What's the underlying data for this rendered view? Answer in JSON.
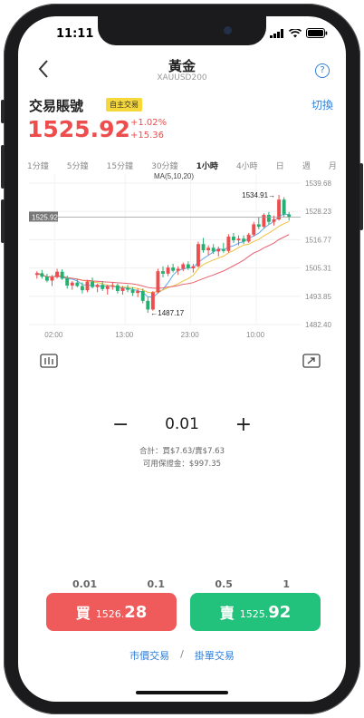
{
  "status": {
    "time": "11:11"
  },
  "nav": {
    "back_icon": "chevron-left-icon",
    "title": "黃金",
    "subtitle": "XAUUSD200",
    "help_label": "?"
  },
  "account": {
    "name": "交易賬號",
    "badge": "自主交易",
    "switch_label": "切換"
  },
  "quote": {
    "price": "1525.92",
    "change_pct": "+1.02%",
    "change_abs": "+15.36"
  },
  "timeframes": [
    "1分鐘",
    "5分鐘",
    "15分鐘",
    "30分鐘",
    "1小時",
    "4小時",
    "日",
    "週",
    "月"
  ],
  "active_timeframe": "1小時",
  "chart_data": {
    "type": "candlestick",
    "indicator": "MA(5,10,20)",
    "y_ticks": [
      "1539.68",
      "1528.23",
      "1516.77",
      "1505.31",
      "1493.85",
      "1482.40"
    ],
    "ylim": [
      1482.4,
      1539.68
    ],
    "x_ticks": [
      "02:00",
      "13:00",
      "23:00",
      "10:00"
    ],
    "current_price_label": "1525.92",
    "high_annotation": "1534.91",
    "low_annotation": "1487.17",
    "colors": {
      "up": "#ef4d4d",
      "down": "#24b070",
      "ma5": "#5aa8e8",
      "ma10": "#f0c040",
      "ma20": "#e86070"
    },
    "candles": [
      [
        1502.5,
        1504.0,
        1501.0,
        1503.2
      ],
      [
        1503.2,
        1504.5,
        1501.0,
        1501.8
      ],
      [
        1501.8,
        1503.0,
        1499.5,
        1500.2
      ],
      [
        1500.2,
        1502.5,
        1498.0,
        1501.6
      ],
      [
        1501.6,
        1505.0,
        1501.0,
        1503.8
      ],
      [
        1503.8,
        1504.8,
        1500.5,
        1501.0
      ],
      [
        1501.0,
        1502.2,
        1497.0,
        1498.2
      ],
      [
        1498.2,
        1500.0,
        1496.5,
        1499.4
      ],
      [
        1499.4,
        1501.0,
        1497.5,
        1498.0
      ],
      [
        1498.0,
        1499.5,
        1495.0,
        1496.3
      ],
      [
        1496.3,
        1500.5,
        1495.5,
        1499.8
      ],
      [
        1499.8,
        1501.5,
        1497.0,
        1497.6
      ],
      [
        1497.6,
        1499.0,
        1495.5,
        1498.5
      ],
      [
        1498.5,
        1500.0,
        1496.0,
        1496.8
      ],
      [
        1496.8,
        1498.5,
        1494.5,
        1497.9
      ],
      [
        1497.9,
        1499.5,
        1496.5,
        1498.3
      ],
      [
        1498.3,
        1499.0,
        1495.0,
        1496.0
      ],
      [
        1496.0,
        1498.0,
        1494.5,
        1497.2
      ],
      [
        1497.2,
        1498.5,
        1495.5,
        1496.5
      ],
      [
        1496.5,
        1497.5,
        1494.0,
        1495.2
      ],
      [
        1495.2,
        1497.0,
        1493.5,
        1496.0
      ],
      [
        1496.0,
        1497.0,
        1491.0,
        1492.0
      ],
      [
        1492.0,
        1493.5,
        1487.17,
        1488.5
      ],
      [
        1488.5,
        1496.0,
        1488.0,
        1495.5
      ],
      [
        1495.5,
        1505.0,
        1495.0,
        1504.0
      ],
      [
        1504.0,
        1506.0,
        1501.5,
        1503.0
      ],
      [
        1503.0,
        1506.5,
        1502.0,
        1505.5
      ],
      [
        1505.5,
        1507.0,
        1503.5,
        1504.2
      ],
      [
        1504.2,
        1506.0,
        1502.5,
        1505.0
      ],
      [
        1505.0,
        1507.5,
        1504.0,
        1506.8
      ],
      [
        1506.8,
        1508.0,
        1504.5,
        1505.2
      ],
      [
        1505.2,
        1507.0,
        1503.5,
        1506.0
      ],
      [
        1506.0,
        1516.0,
        1505.5,
        1515.0
      ],
      [
        1515.0,
        1517.5,
        1511.5,
        1512.5
      ],
      [
        1512.5,
        1514.5,
        1510.5,
        1513.5
      ],
      [
        1513.5,
        1515.0,
        1511.0,
        1512.0
      ],
      [
        1512.0,
        1514.0,
        1510.0,
        1513.0
      ],
      [
        1513.0,
        1515.5,
        1511.5,
        1512.2
      ],
      [
        1512.2,
        1519.0,
        1511.5,
        1518.0
      ],
      [
        1518.0,
        1519.5,
        1515.5,
        1516.5
      ],
      [
        1516.5,
        1518.5,
        1514.5,
        1517.2
      ],
      [
        1517.2,
        1518.5,
        1515.0,
        1516.0
      ],
      [
        1516.0,
        1519.5,
        1515.5,
        1518.8
      ],
      [
        1518.8,
        1524.0,
        1518.0,
        1523.0
      ],
      [
        1523.0,
        1526.0,
        1521.0,
        1522.0
      ],
      [
        1522.0,
        1527.5,
        1521.5,
        1526.8
      ],
      [
        1526.8,
        1528.0,
        1523.0,
        1524.0
      ],
      [
        1524.0,
        1526.5,
        1522.5,
        1525.0
      ],
      [
        1525.0,
        1534.91,
        1524.5,
        1533.0
      ],
      [
        1533.0,
        1534.0,
        1526.0,
        1527.0
      ],
      [
        1527.0,
        1528.0,
        1524.5,
        1525.92
      ]
    ]
  },
  "tools": {
    "chart_type_icon": "candle-chart-icon",
    "expand_icon": "expand-icon"
  },
  "order": {
    "minus": "−",
    "qty": "0.01",
    "plus": "+",
    "total_label": "合計：買$7.63/賣$7.63",
    "margin_label": "可用保證金：$997.35",
    "presets": [
      "0.01",
      "0.1",
      "0.5",
      "1"
    ]
  },
  "buy": {
    "label": "買",
    "price_small": "1526.",
    "price_big": "28"
  },
  "sell": {
    "label": "賣",
    "price_small": "1525.",
    "price_big": "92"
  },
  "links": {
    "market": "市價交易",
    "separator": "/",
    "pending": "掛單交易"
  }
}
